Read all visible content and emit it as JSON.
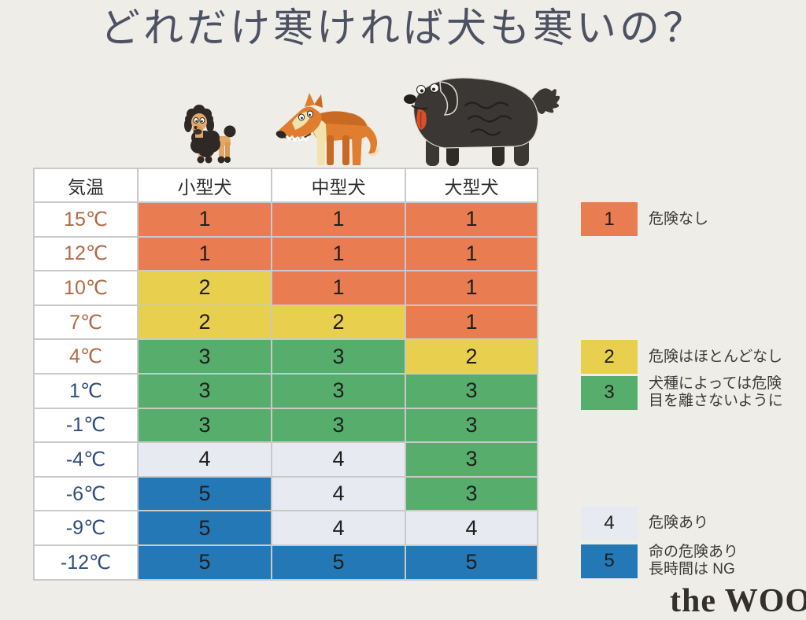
{
  "page": {
    "background_color": "#EFEDE7",
    "title_color": "#4D5263",
    "footer_logo": "the WOOF"
  },
  "icons": {
    "small_dog": "poodle-small-dog-illustration",
    "medium_dog": "bull-terrier-medium-dog-illustration",
    "large_dog": "fluffy-large-dog-illustration"
  },
  "chart_data": {
    "type": "heatmap",
    "title": "どれだけ寒ければ犬も寒いの？",
    "columns": [
      "気温",
      "小型犬",
      "中型犬",
      "大型犬"
    ],
    "rows": [
      {
        "temp": "15℃",
        "temp_style": "warm",
        "values": [
          1,
          1,
          1
        ]
      },
      {
        "temp": "12℃",
        "temp_style": "warm",
        "values": [
          1,
          1,
          1
        ]
      },
      {
        "temp": "10℃",
        "temp_style": "warm",
        "values": [
          2,
          1,
          1
        ]
      },
      {
        "temp": "7℃",
        "temp_style": "warm",
        "values": [
          2,
          2,
          1
        ]
      },
      {
        "temp": "4℃",
        "temp_style": "warm",
        "values": [
          3,
          3,
          2
        ]
      },
      {
        "temp": "1℃",
        "temp_style": "cold",
        "values": [
          3,
          3,
          3
        ]
      },
      {
        "temp": "-1℃",
        "temp_style": "cold",
        "values": [
          3,
          3,
          3
        ]
      },
      {
        "temp": "-4℃",
        "temp_style": "cold",
        "values": [
          4,
          4,
          3
        ]
      },
      {
        "temp": "-6℃",
        "temp_style": "cold",
        "values": [
          5,
          4,
          3
        ]
      },
      {
        "temp": "-9℃",
        "temp_style": "cold",
        "values": [
          5,
          4,
          4
        ]
      },
      {
        "temp": "-12℃",
        "temp_style": "cold",
        "values": [
          5,
          5,
          5
        ]
      }
    ],
    "levels": {
      "1": {
        "color": "#E97C50",
        "label_lines": [
          "危険なし"
        ]
      },
      "2": {
        "color": "#E8CF4E",
        "label_lines": [
          "危険はほとんどなし"
        ]
      },
      "3": {
        "color": "#57AE6C",
        "label_lines": [
          "犬種によっては危険",
          "目を離さないように"
        ]
      },
      "4": {
        "color": "#E7EAF0",
        "label_lines": [
          "危険あり"
        ]
      },
      "5": {
        "color": "#2478B5",
        "label_lines": [
          "命の危険あり",
          "長時間は NG"
        ]
      }
    },
    "temp_text_colors": {
      "warm": "#B06A45",
      "cold": "#2F4D7A"
    },
    "grid_color": "#C9C9C9",
    "legend_position": "right"
  }
}
